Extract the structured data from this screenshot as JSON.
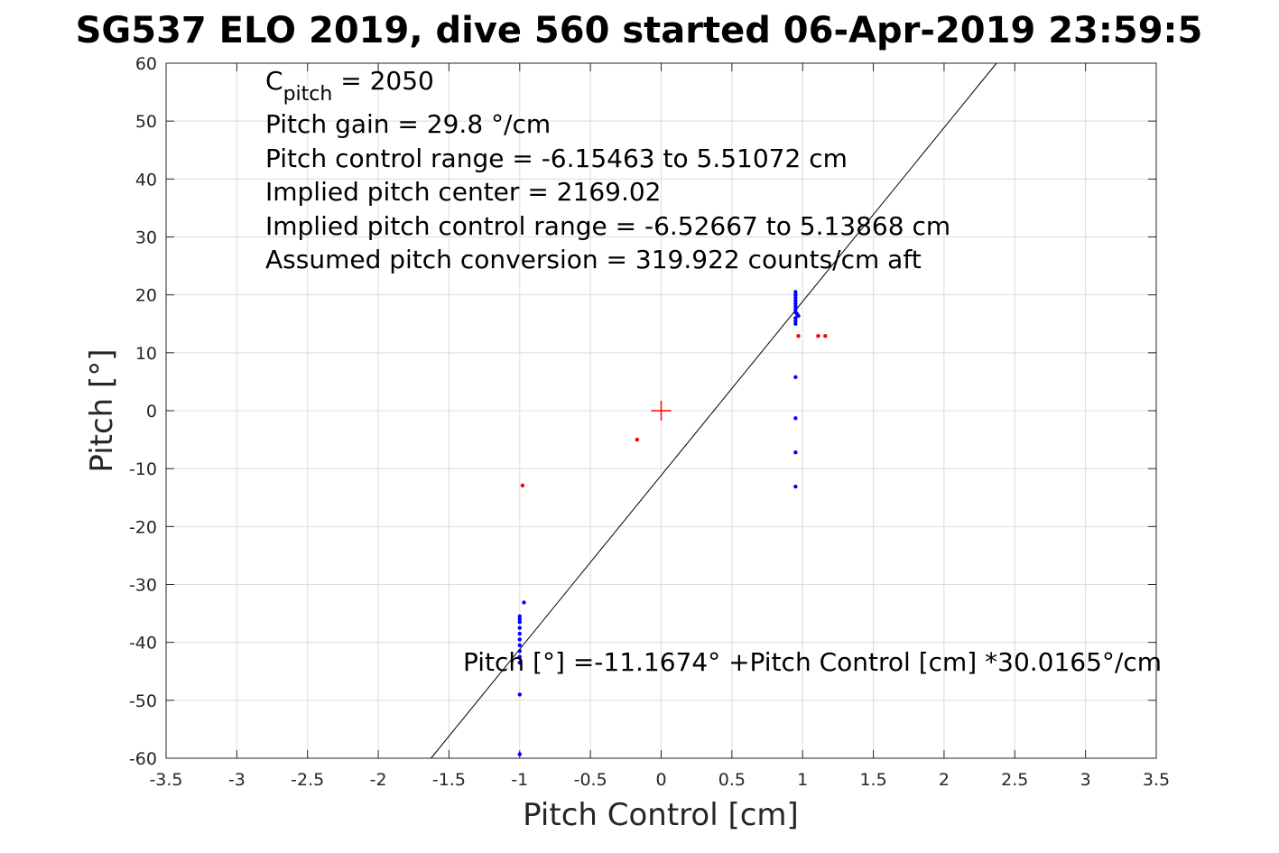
{
  "chart_data": {
    "type": "scatter",
    "title": "SG537 ELO 2019, dive 560 started 06-Apr-2019 23:59:5",
    "xlabel": "Pitch Control [cm]",
    "ylabel": "Pitch [°]",
    "xlim": [
      -3.5,
      3.5
    ],
    "ylim": [
      -60,
      60
    ],
    "xticks": [
      -3.5,
      -3,
      -2.5,
      -2,
      -1.5,
      -1,
      -0.5,
      0,
      0.5,
      1,
      1.5,
      2,
      2.5,
      3,
      3.5
    ],
    "xtick_labels": [
      "-3.5",
      "-3",
      "-2.5",
      "-2",
      "-1.5",
      "-1",
      "-0.5",
      "0",
      "0.5",
      "1",
      "1.5",
      "2",
      "2.5",
      "3",
      "3.5"
    ],
    "yticks": [
      -60,
      -50,
      -40,
      -30,
      -20,
      -10,
      0,
      10,
      20,
      30,
      40,
      50,
      60
    ],
    "ytick_labels": [
      "-60",
      "-50",
      "-40",
      "-30",
      "-20",
      "-10",
      "0",
      "10",
      "20",
      "30",
      "40",
      "50",
      "60"
    ],
    "grid": true,
    "annotations": {
      "cpitch_main": "C",
      "cpitch_sub": "pitch",
      "cpitch_value": " = 2050",
      "lines": [
        "Pitch gain = 29.8 °/cm",
        "Pitch control range = -6.15463 to 5.51072 cm",
        "Implied pitch center = 2169.02",
        "Implied pitch control range = -6.52667 to 5.13868 cm",
        "Assumed pitch conversion = 319.922 counts/cm aft"
      ],
      "fit_equation": "Pitch [°] =-11.1674° +Pitch Control [cm] *30.0165°/cm"
    },
    "fit_line": {
      "intercept": -11.1674,
      "slope": 30.0165,
      "color": "#000000"
    },
    "center_marker": {
      "x": 0,
      "y": 0,
      "color": "#ff0000"
    },
    "series": [
      {
        "color": "#0000ff",
        "points": [
          [
            0.95,
            20.5
          ],
          [
            0.95,
            20.0
          ],
          [
            0.95,
            19.5
          ],
          [
            0.95,
            19.0
          ],
          [
            0.95,
            18.5
          ],
          [
            0.95,
            18.0
          ],
          [
            0.95,
            17.5
          ],
          [
            0.95,
            17.0
          ],
          [
            0.96,
            16.7
          ],
          [
            0.97,
            16.4
          ],
          [
            0.95,
            16.0
          ],
          [
            0.95,
            15.5
          ],
          [
            0.95,
            15.0
          ],
          [
            0.95,
            5.8
          ],
          [
            0.95,
            -1.3
          ],
          [
            0.95,
            -7.2
          ],
          [
            0.95,
            -13.1
          ],
          [
            -0.97,
            -33.1
          ],
          [
            -1.0,
            -35.5
          ],
          [
            -1.0,
            -36.0
          ],
          [
            -1.0,
            -36.5
          ],
          [
            -1.0,
            -37.5
          ],
          [
            -1.0,
            -38.5
          ],
          [
            -1.0,
            -39.5
          ],
          [
            -1.0,
            -40.5
          ],
          [
            -1.0,
            -41.5
          ],
          [
            -1.0,
            -42.5
          ],
          [
            -1.0,
            -43.5
          ],
          [
            -1.0,
            -49.0
          ],
          [
            -1.0,
            -59.3
          ]
        ]
      },
      {
        "color": "#ff0000",
        "points": [
          [
            0.97,
            12.9
          ],
          [
            1.11,
            12.9
          ],
          [
            1.16,
            12.9
          ],
          [
            -0.17,
            -5.0
          ],
          [
            -0.98,
            -12.9
          ]
        ]
      }
    ]
  }
}
